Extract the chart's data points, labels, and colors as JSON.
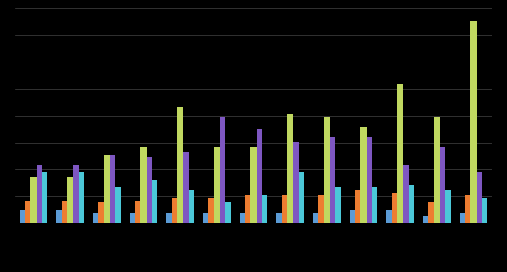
{
  "background_color": "#000000",
  "plot_bg_color": "#000000",
  "grid_color": "#444444",
  "bar_colors": [
    "#5b9bd5",
    "#ed7d31",
    "#c0d860",
    "#7e57c2",
    "#4bc8d8"
  ],
  "n_groups": 13,
  "series": [
    [
      5,
      5,
      4,
      4,
      4,
      4,
      4,
      4,
      4,
      5,
      5,
      3,
      4
    ],
    [
      9,
      9,
      8,
      9,
      10,
      10,
      11,
      11,
      11,
      13,
      12,
      8,
      11
    ],
    [
      18,
      18,
      27,
      30,
      46,
      30,
      30,
      43,
      42,
      38,
      55,
      42,
      80
    ],
    [
      23,
      23,
      27,
      26,
      28,
      42,
      37,
      32,
      34,
      34,
      23,
      30,
      20
    ],
    [
      20,
      20,
      14,
      17,
      13,
      8,
      11,
      20,
      14,
      14,
      15,
      13,
      10
    ]
  ],
  "ylim": [
    0,
    85
  ],
  "n_yticks": 9
}
